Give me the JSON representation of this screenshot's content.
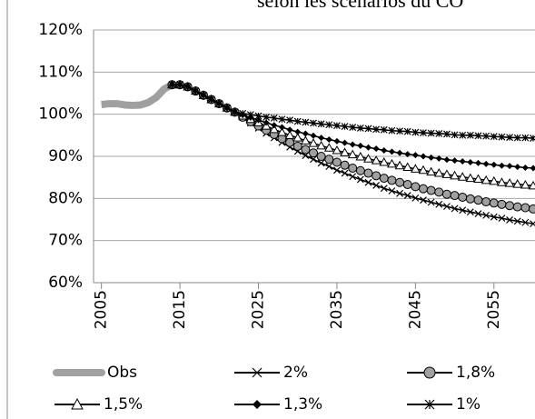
{
  "chart_data": {
    "type": "line",
    "title": "selon les scénarios du CO",
    "xlim": [
      2004,
      2060
    ],
    "xticks": [
      2005,
      2015,
      2025,
      2035,
      2045,
      2055
    ],
    "ylim": [
      60,
      120
    ],
    "yticks": [
      {
        "value": 60,
        "label": "60%"
      },
      {
        "value": 70,
        "label": "70%"
      },
      {
        "value": 80,
        "label": "80%"
      },
      {
        "value": 90,
        "label": "90%"
      },
      {
        "value": 100,
        "label": "100%"
      },
      {
        "value": 110,
        "label": "110%"
      },
      {
        "value": 120,
        "label": "120%"
      }
    ],
    "grid": true,
    "series": [
      {
        "name": "Obs",
        "color": "#a0a0a0",
        "marker": "none",
        "x": [
          2005,
          2006,
          2007,
          2008,
          2009,
          2010,
          2011,
          2012,
          2013,
          2014
        ],
        "values": [
          102.3,
          102.5,
          102.5,
          102.2,
          102.1,
          102.2,
          102.8,
          104,
          106,
          107
        ]
      },
      {
        "name": "2%",
        "color": "#000000",
        "marker": "x",
        "x": [
          2014,
          2015,
          2016,
          2017,
          2018,
          2019,
          2020,
          2021,
          2022,
          2023,
          2024,
          2025,
          2026,
          2027,
          2028,
          2029,
          2030,
          2031,
          2032,
          2033,
          2034,
          2035,
          2036,
          2037,
          2038,
          2039,
          2040,
          2041,
          2042,
          2043,
          2044,
          2045,
          2046,
          2047,
          2048,
          2049,
          2050,
          2051,
          2052,
          2053,
          2054,
          2055,
          2056,
          2057,
          2058,
          2059,
          2060
        ],
        "values": [
          107,
          107,
          106.5,
          105.5,
          104.5,
          103.5,
          102.5,
          101.5,
          100.5,
          99.2,
          97.9,
          96.7,
          95.5,
          94.4,
          93.3,
          92.2,
          91.2,
          90.2,
          89.3,
          88.4,
          87.6,
          86.7,
          86.0,
          85.2,
          84.5,
          83.8,
          83.1,
          82.4,
          81.8,
          81.2,
          80.7,
          80.1,
          79.6,
          79.1,
          78.6,
          78.1,
          77.6,
          77.2,
          76.8,
          76.4,
          76.0,
          75.6,
          75.3,
          74.9,
          74.6,
          74.3,
          74.0
        ]
      },
      {
        "name": "1,8%",
        "color": "#000000",
        "marker": "circle",
        "x": [
          2014,
          2015,
          2016,
          2017,
          2018,
          2019,
          2020,
          2021,
          2022,
          2023,
          2024,
          2025,
          2026,
          2027,
          2028,
          2029,
          2030,
          2031,
          2032,
          2033,
          2034,
          2035,
          2036,
          2037,
          2038,
          2039,
          2040,
          2041,
          2042,
          2043,
          2044,
          2045,
          2046,
          2047,
          2048,
          2049,
          2050,
          2051,
          2052,
          2053,
          2054,
          2055,
          2056,
          2057,
          2058,
          2059,
          2060
        ],
        "values": [
          107,
          107,
          106.5,
          105.5,
          104.5,
          103.5,
          102.5,
          101.5,
          100.5,
          99.3,
          98.2,
          97.2,
          96.2,
          95.2,
          94.2,
          93.3,
          92.4,
          91.6,
          90.8,
          90.0,
          89.3,
          88.6,
          87.9,
          87.2,
          86.6,
          86.0,
          85.4,
          84.8,
          84.3,
          83.8,
          83.3,
          82.8,
          82.3,
          81.9,
          81.5,
          81.0,
          80.7,
          80.3,
          79.9,
          79.6,
          79.2,
          78.9,
          78.6,
          78.3,
          78.0,
          77.8,
          77.5
        ]
      },
      {
        "name": "1,5%",
        "color": "#000000",
        "marker": "triangle",
        "x": [
          2014,
          2015,
          2016,
          2017,
          2018,
          2019,
          2020,
          2021,
          2022,
          2023,
          2024,
          2025,
          2026,
          2027,
          2028,
          2029,
          2030,
          2031,
          2032,
          2033,
          2034,
          2035,
          2036,
          2037,
          2038,
          2039,
          2040,
          2041,
          2042,
          2043,
          2044,
          2045,
          2046,
          2047,
          2048,
          2049,
          2050,
          2051,
          2052,
          2053,
          2054,
          2055,
          2056,
          2057,
          2058,
          2059,
          2060
        ],
        "values": [
          107,
          107,
          106.5,
          105.5,
          104.5,
          103.5,
          102.5,
          101.5,
          100.5,
          99.6,
          98.8,
          98.0,
          97.2,
          96.4,
          95.7,
          95.0,
          94.4,
          93.7,
          93.1,
          92.5,
          92.0,
          91.4,
          90.9,
          90.4,
          89.9,
          89.4,
          89.0,
          88.6,
          88.2,
          87.8,
          87.4,
          87.0,
          86.7,
          86.3,
          86.0,
          85.7,
          85.4,
          85.1,
          84.8,
          84.6,
          84.3,
          84.1,
          83.8,
          83.6,
          83.4,
          83.2,
          83.0
        ]
      },
      {
        "name": "1,3%",
        "color": "#000000",
        "marker": "diamond",
        "x": [
          2014,
          2015,
          2016,
          2017,
          2018,
          2019,
          2020,
          2021,
          2022,
          2023,
          2024,
          2025,
          2026,
          2027,
          2028,
          2029,
          2030,
          2031,
          2032,
          2033,
          2034,
          2035,
          2036,
          2037,
          2038,
          2039,
          2040,
          2041,
          2042,
          2043,
          2044,
          2045,
          2046,
          2047,
          2048,
          2049,
          2050,
          2051,
          2052,
          2053,
          2054,
          2055,
          2056,
          2057,
          2058,
          2059,
          2060
        ],
        "values": [
          107,
          107,
          106.5,
          105.5,
          104.5,
          103.5,
          102.5,
          101.5,
          100.5,
          99.8,
          99.2,
          98.6,
          98.0,
          97.4,
          96.9,
          96.3,
          95.8,
          95.4,
          94.9,
          94.4,
          94.0,
          93.6,
          93.2,
          92.8,
          92.5,
          92.1,
          91.8,
          91.4,
          91.1,
          90.8,
          90.5,
          90.3,
          90.0,
          89.7,
          89.5,
          89.2,
          89.0,
          88.8,
          88.6,
          88.4,
          88.2,
          88.0,
          87.8,
          87.7,
          87.5,
          87.3,
          87.2
        ]
      },
      {
        "name": "1%",
        "color": "#000000",
        "marker": "asterisk",
        "x": [
          2014,
          2015,
          2016,
          2017,
          2018,
          2019,
          2020,
          2021,
          2022,
          2023,
          2024,
          2025,
          2026,
          2027,
          2028,
          2029,
          2030,
          2031,
          2032,
          2033,
          2034,
          2035,
          2036,
          2037,
          2038,
          2039,
          2040,
          2041,
          2042,
          2043,
          2044,
          2045,
          2046,
          2047,
          2048,
          2049,
          2050,
          2051,
          2052,
          2053,
          2054,
          2055,
          2056,
          2057,
          2058,
          2059,
          2060
        ],
        "values": [
          107,
          107,
          106.5,
          105.5,
          104.5,
          103.5,
          102.5,
          101.5,
          100.5,
          100.2,
          99.9,
          99.6,
          99.3,
          99.1,
          98.8,
          98.6,
          98.3,
          98.1,
          97.9,
          97.7,
          97.5,
          97.3,
          97.1,
          96.9,
          96.7,
          96.6,
          96.4,
          96.3,
          96.1,
          96.0,
          95.9,
          95.7,
          95.6,
          95.5,
          95.4,
          95.3,
          95.1,
          95.0,
          95.0,
          94.9,
          94.8,
          94.7,
          94.6,
          94.5,
          94.4,
          94.4,
          94.3
        ]
      }
    ]
  }
}
